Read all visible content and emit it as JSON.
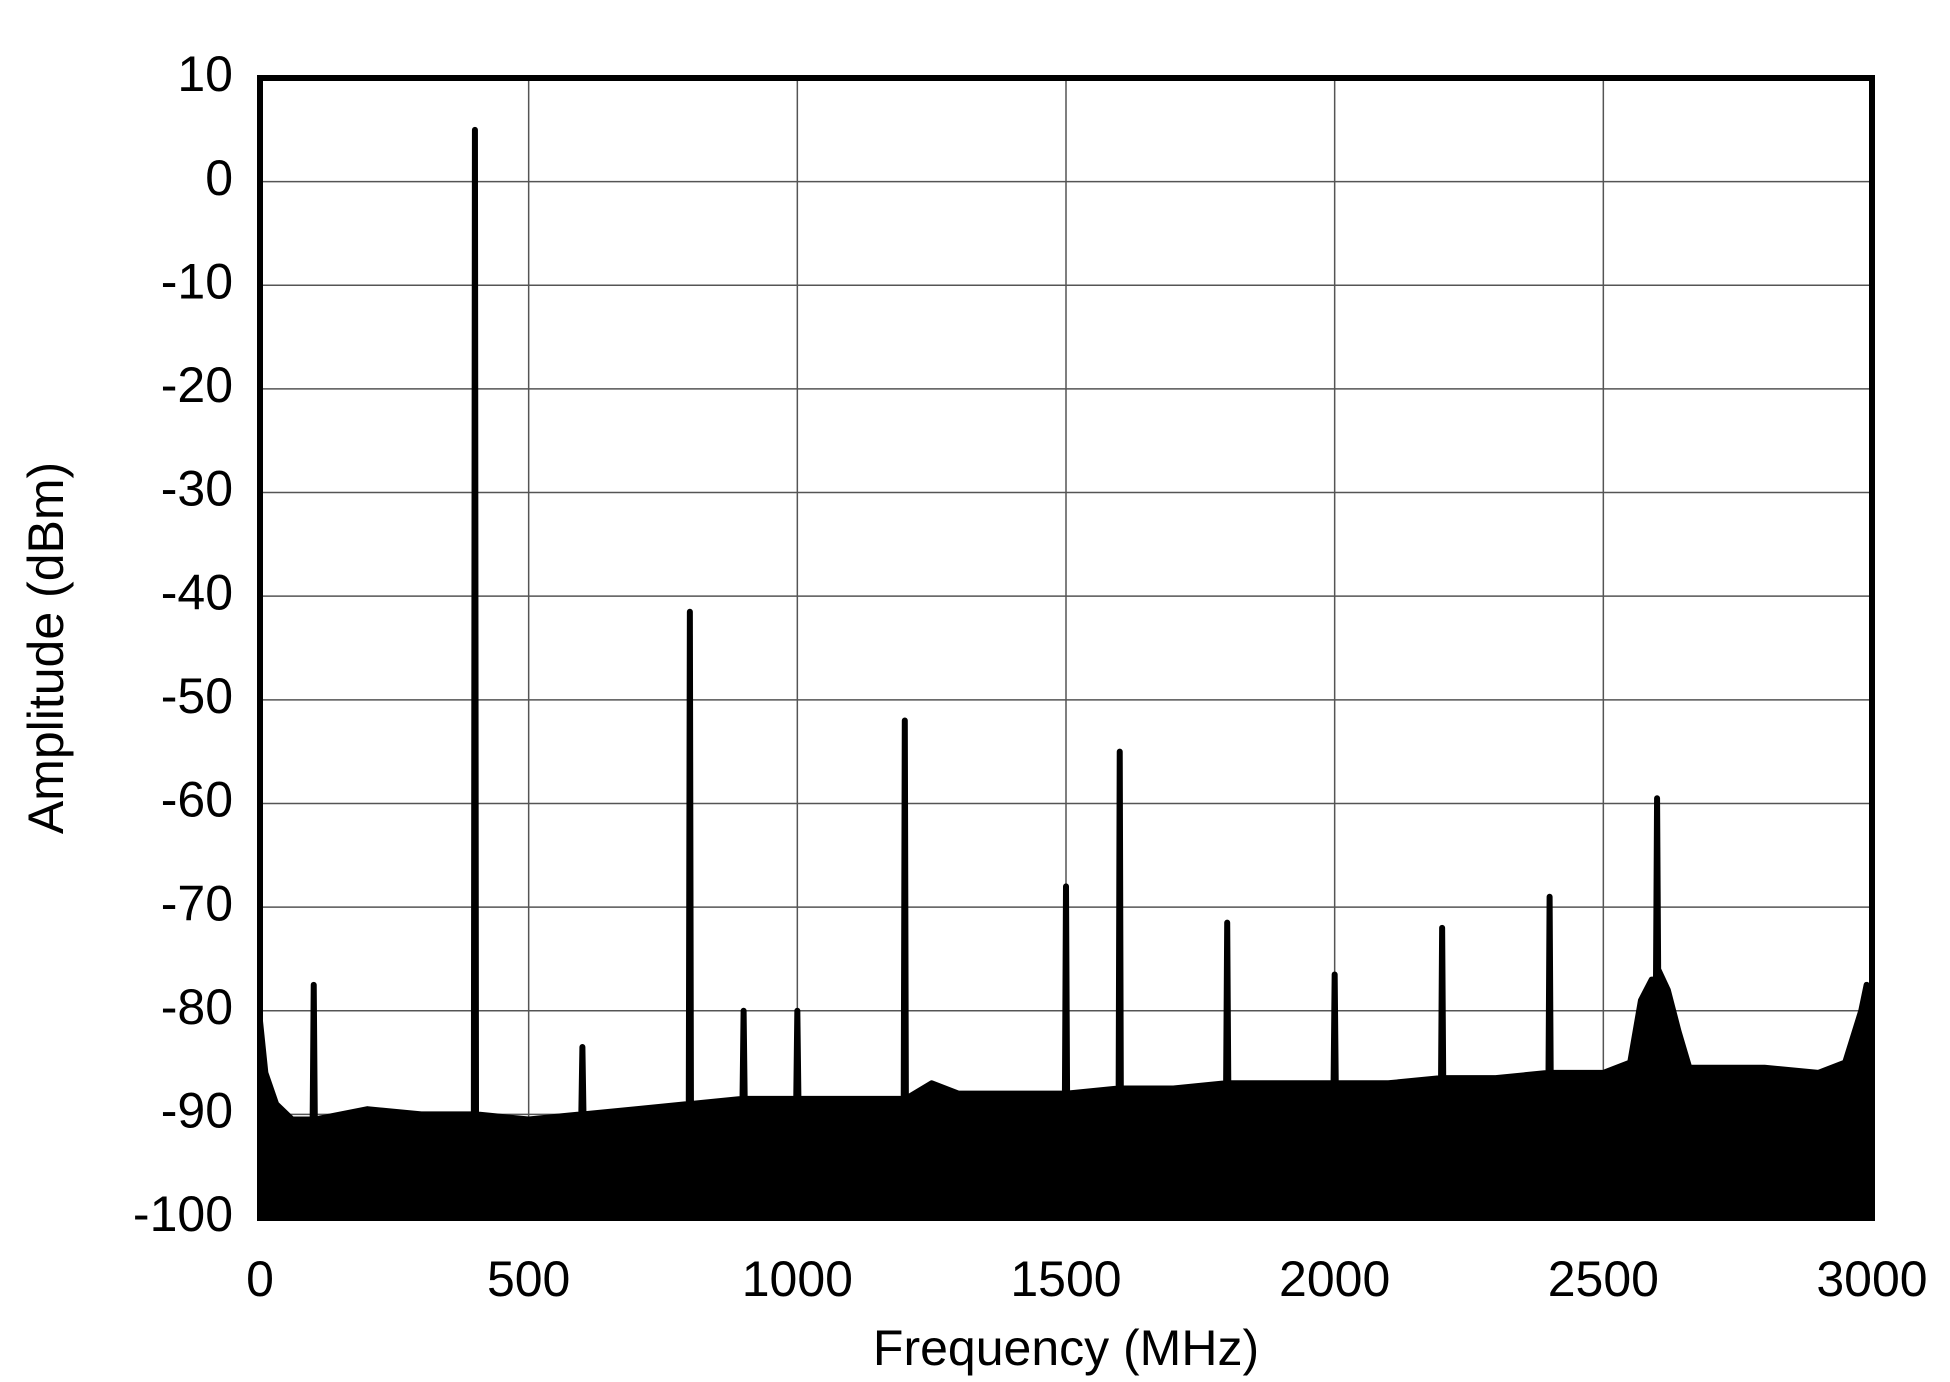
{
  "chart_data": {
    "type": "area",
    "color": "#000000",
    "grid": true,
    "xlabel": "Frequency (MHz)",
    "ylabel": "Amplitude (dBm)",
    "xlim": [
      0,
      3000
    ],
    "xticks": [
      0,
      500,
      1000,
      1500,
      2000,
      2500,
      3000
    ],
    "ylim": [
      -100,
      10
    ],
    "yticks": [
      -100,
      -90,
      -80,
      -70,
      -60,
      -50,
      -40,
      -30,
      -20,
      -10,
      0,
      10
    ],
    "x": [
      0,
      10,
      30,
      60,
      98,
      100,
      102,
      200,
      300,
      398,
      400,
      402,
      500,
      598,
      600,
      602,
      700,
      798,
      800,
      802,
      898,
      900,
      902,
      998,
      1000,
      1002,
      1100,
      1198,
      1200,
      1202,
      1250,
      1300,
      1400,
      1498,
      1500,
      1502,
      1598,
      1600,
      1602,
      1700,
      1798,
      1800,
      1802,
      1900,
      1998,
      2000,
      2002,
      2100,
      2198,
      2200,
      2202,
      2300,
      2398,
      2400,
      2402,
      2500,
      2550,
      2570,
      2590,
      2598,
      2600,
      2602,
      2620,
      2640,
      2660,
      2800,
      2900,
      2950,
      2980,
      2990,
      3000
    ],
    "values": [
      -81,
      -86,
      -89,
      -90.5,
      -90.5,
      -77.5,
      -90.5,
      -89.5,
      -90,
      -90,
      5,
      -90,
      -90.5,
      -90,
      -83.5,
      -90,
      -89.5,
      -89,
      -41.5,
      -89,
      -88.5,
      -80,
      -88.5,
      -88.5,
      -80,
      -88.5,
      -88.5,
      -88.5,
      -52,
      -88.5,
      -87,
      -88,
      -88,
      -88,
      -68,
      -88,
      -87.5,
      -55,
      -87.5,
      -87.5,
      -87,
      -71.5,
      -87,
      -87,
      -87,
      -76.5,
      -87,
      -87,
      -86.5,
      -72,
      -86.5,
      -86.5,
      -86,
      -69,
      -86,
      -86,
      -85,
      -79,
      -77,
      -77,
      -59.5,
      -76,
      -78,
      -82,
      -85.5,
      -85.5,
      -86,
      -85,
      -80,
      -77.5,
      -78
    ]
  }
}
